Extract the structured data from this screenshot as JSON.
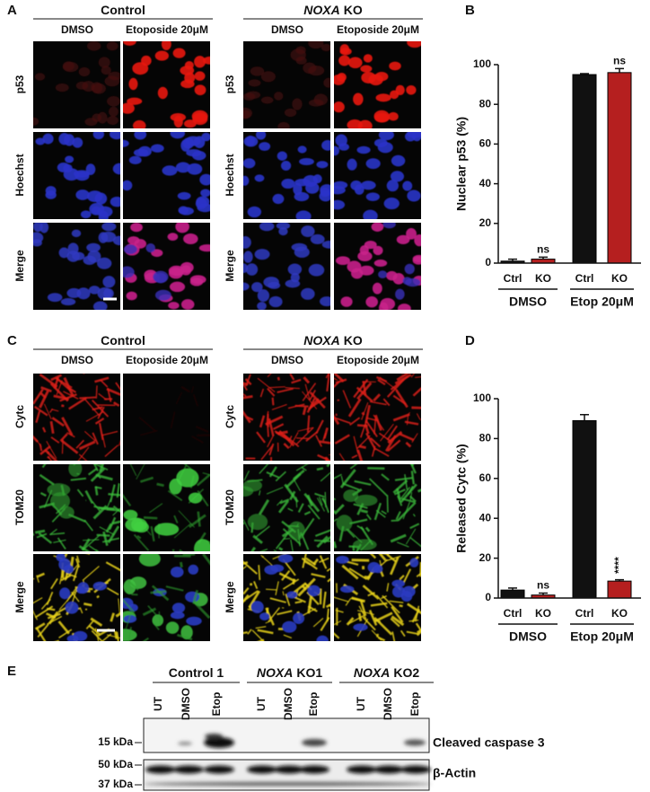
{
  "panels": {
    "A": {
      "label": "A",
      "groups": [
        {
          "title": [
            "Control"
          ]
        },
        {
          "title": [
            "NOXA",
            "KO"
          ]
        }
      ],
      "columns": [
        "DMSO",
        "Etoposide 20μM"
      ],
      "rows": [
        "p53",
        "Hoechst",
        "Merge"
      ]
    },
    "C": {
      "label": "C",
      "groups": [
        {
          "title": [
            "Control"
          ]
        },
        {
          "title": [
            "NOXA",
            "KO"
          ]
        }
      ],
      "columns": [
        "DMSO",
        "Etoposide 20μM"
      ],
      "rows": [
        "Cytc",
        "TOM20",
        "Merge"
      ]
    },
    "E": {
      "label": "E",
      "groups": [
        {
          "title": [
            "Control 1"
          ]
        },
        {
          "title": [
            "NOXA",
            "KO1"
          ]
        },
        {
          "title": [
            "NOXA",
            "KO2"
          ]
        }
      ],
      "lanes": [
        "UT",
        "DMSO",
        "Etop",
        "UT",
        "DMSO",
        "Etop",
        "UT",
        "DMSO",
        "Etop"
      ],
      "markers": [
        "15 kDa",
        "50 kDa",
        "37 kDa"
      ],
      "blots": [
        "Cleaved caspase 3",
        "β-Actin"
      ]
    }
  },
  "chart_data": [
    {
      "type": "bar",
      "label": "B",
      "y_label": "Nuclear p53 (%)",
      "categories": [
        "Ctrl",
        "KO",
        "Ctrl",
        "KO"
      ],
      "group_labels": [
        "DMSO",
        "Etop 20μM"
      ],
      "values": [
        1,
        2,
        95,
        96
      ],
      "errors": [
        1,
        1,
        0.5,
        2
      ],
      "annotations": [
        null,
        "ns",
        null,
        "ns"
      ],
      "colors": [
        "#111111",
        "#b51f1f",
        "#111111",
        "#b51f1f"
      ],
      "ylim": [
        0,
        100
      ],
      "yticks": [
        0,
        20,
        40,
        60,
        80,
        100
      ],
      "grid": false
    },
    {
      "type": "bar",
      "label": "D",
      "y_label": "Released Cytc (%)",
      "categories": [
        "Ctrl",
        "KO",
        "Ctrl",
        "KO"
      ],
      "group_labels": [
        "DMSO",
        "Etop 20μM"
      ],
      "values": [
        4,
        1.5,
        89,
        8.5
      ],
      "errors": [
        1,
        1,
        3,
        0.7
      ],
      "annotations": [
        null,
        "ns",
        null,
        "****"
      ],
      "colors": [
        "#111111",
        "#b51f1f",
        "#111111",
        "#b51f1f"
      ],
      "ylim": [
        0,
        100
      ],
      "yticks": [
        0,
        20,
        40,
        60,
        80,
        100
      ],
      "grid": false
    }
  ]
}
